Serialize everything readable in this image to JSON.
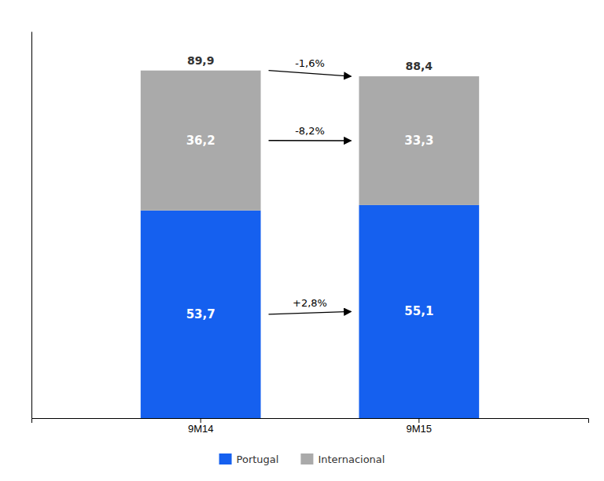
{
  "chart_data": {
    "type": "bar",
    "stacked": true,
    "categories": [
      "9M14",
      "9M15"
    ],
    "series": [
      {
        "name": "Portugal",
        "color": "#1560EF",
        "values": [
          53.7,
          55.1
        ],
        "value_labels": [
          "53,7",
          "55,1"
        ]
      },
      {
        "name": "Internacional",
        "color": "#AAAAAA",
        "values": [
          36.2,
          33.3
        ],
        "value_labels": [
          "36,2",
          "33,3"
        ]
      }
    ],
    "totals": {
      "values": [
        89.9,
        88.4
      ],
      "value_labels": [
        "89,9",
        "88,4"
      ]
    },
    "annotations": [
      {
        "text": "-1,6%"
      },
      {
        "text": "-8,2%",
        "series": "Internacional"
      },
      {
        "text": "+2,8%",
        "series": "Portugal"
      }
    ],
    "ylim": [
      0,
      100
    ],
    "yticks": [],
    "grid": false,
    "data_labels": true,
    "tick_labels": "x",
    "legend": "bottom"
  }
}
